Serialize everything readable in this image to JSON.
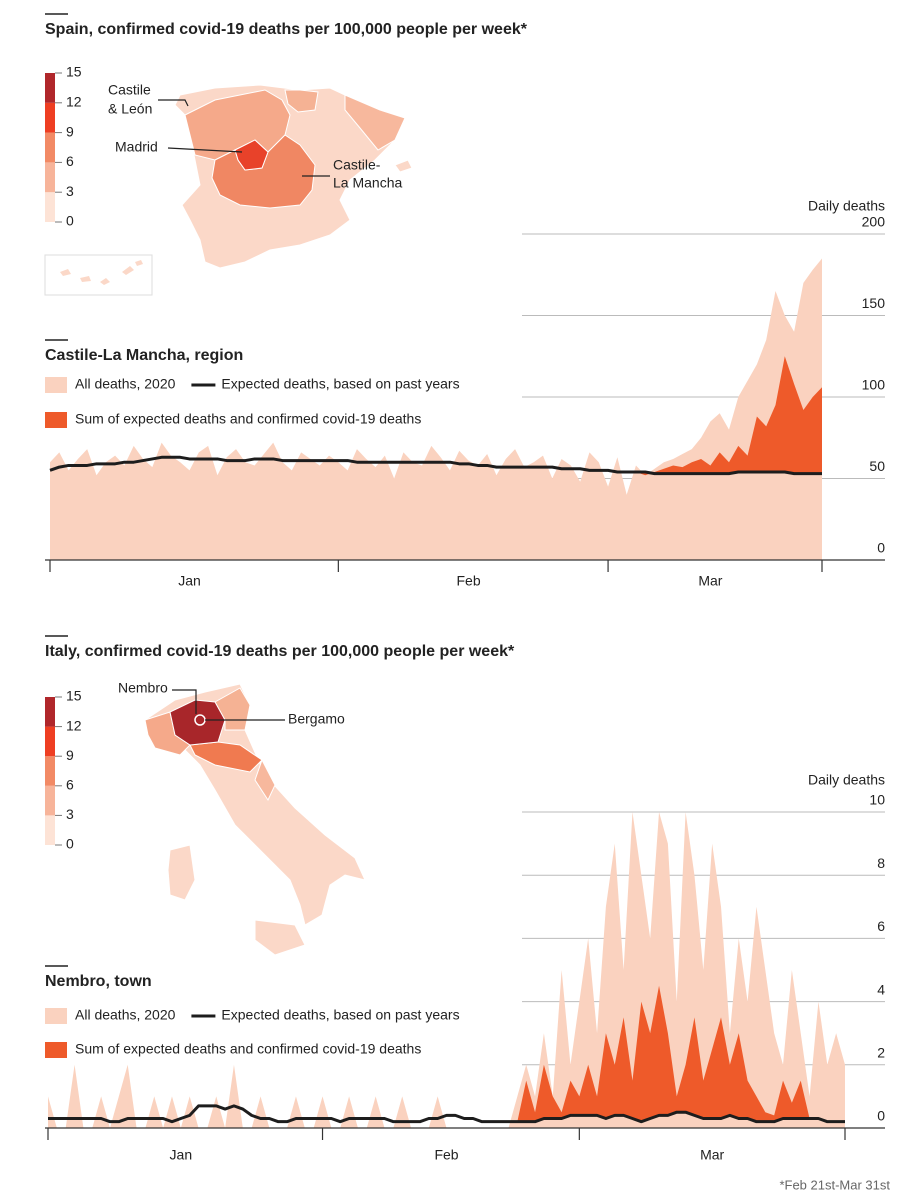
{
  "chart_data": [
    {
      "type": "area",
      "map_title": "Spain, confirmed covid-19 deaths per 100,000 people per week*",
      "map_scale": {
        "ticks": [
          0,
          3,
          6,
          9,
          12,
          15
        ],
        "colors": [
          "#fde3d6",
          "#f7b49a",
          "#f28a65",
          "#ee3e22",
          "#b0272b"
        ]
      },
      "map_labels": [
        [
          "Castile",
          "& León"
        ],
        [
          "Madrid"
        ],
        [
          "Castile-",
          "La Mancha"
        ]
      ],
      "title": "Castile-La Mancha, region",
      "y_label": "Daily deaths",
      "ylim": [
        0,
        200
      ],
      "yticks": [
        0,
        50,
        100,
        150,
        200
      ],
      "categories": [
        null,
        null,
        null,
        null,
        null,
        null,
        null,
        null,
        null,
        null,
        null,
        null,
        null,
        null,
        null,
        "Jan",
        null,
        null,
        null,
        null,
        null,
        null,
        null,
        null,
        null,
        null,
        null,
        null,
        null,
        null,
        null,
        null,
        null,
        null,
        null,
        null,
        null,
        null,
        null,
        null,
        null,
        null,
        null,
        null,
        null,
        "Feb",
        null,
        null,
        null,
        null,
        null,
        null,
        null,
        null,
        null,
        null,
        null,
        null,
        null,
        null,
        null,
        null,
        null,
        null,
        null,
        null,
        null,
        null,
        null,
        null,
        null,
        "Mar",
        null,
        null,
        null,
        null,
        null,
        null,
        null,
        null,
        null,
        null,
        null,
        null
      ],
      "series": [
        {
          "name": "All deaths, 2020",
          "color": "#fad2bf",
          "style": "area",
          "values": [
            60,
            66,
            55,
            62,
            68,
            52,
            60,
            64,
            58,
            70,
            62,
            57,
            72,
            64,
            60,
            55,
            66,
            70,
            52,
            63,
            68,
            60,
            58,
            65,
            72,
            60,
            55,
            66,
            62,
            58,
            64,
            60,
            55,
            68,
            62,
            57,
            64,
            50,
            66,
            60,
            58,
            70,
            63,
            55,
            67,
            61,
            58,
            65,
            52,
            62,
            68,
            57,
            60,
            64,
            50,
            62,
            58,
            48,
            66,
            60,
            45,
            63,
            40,
            58,
            52,
            56,
            60,
            62,
            65,
            68,
            75,
            85,
            90,
            80,
            100,
            110,
            120,
            135,
            165,
            150,
            140,
            170,
            178,
            185
          ]
        },
        {
          "name": "Expected deaths, based on past years",
          "color": "#1d1d1d",
          "style": "line",
          "values": [
            55,
            57,
            58,
            58,
            58,
            59,
            59,
            59,
            60,
            60,
            61,
            62,
            63,
            63,
            63,
            62,
            62,
            62,
            62,
            61,
            61,
            61,
            62,
            62,
            62,
            61,
            61,
            61,
            61,
            61,
            61,
            61,
            61,
            60,
            60,
            60,
            60,
            60,
            60,
            60,
            60,
            60,
            60,
            60,
            59,
            59,
            58,
            58,
            57,
            57,
            57,
            57,
            57,
            57,
            57,
            56,
            56,
            56,
            55,
            55,
            55,
            54,
            54,
            54,
            54,
            53,
            53,
            53,
            53,
            53,
            53,
            53,
            53,
            53,
            54,
            54,
            54,
            54,
            54,
            54,
            53,
            53,
            53,
            53
          ]
        },
        {
          "name": "Sum of expected deaths and confirmed covid-19 deaths",
          "color": "#ee5a2a",
          "style": "band",
          "values": [
            55,
            57,
            58,
            58,
            58,
            59,
            59,
            59,
            60,
            60,
            61,
            62,
            63,
            63,
            63,
            62,
            62,
            62,
            62,
            61,
            61,
            61,
            62,
            62,
            62,
            61,
            61,
            61,
            61,
            61,
            61,
            61,
            61,
            60,
            60,
            60,
            60,
            60,
            60,
            60,
            60,
            60,
            60,
            60,
            59,
            59,
            58,
            58,
            57,
            57,
            57,
            57,
            57,
            57,
            57,
            56,
            56,
            56,
            55,
            55,
            55,
            54,
            54,
            54,
            52,
            54,
            56,
            58,
            57,
            60,
            62,
            58,
            66,
            60,
            70,
            64,
            88,
            82,
            95,
            125,
            108,
            92,
            100,
            106
          ]
        }
      ]
    },
    {
      "type": "area",
      "map_title": "Italy, confirmed covid-19 deaths per 100,000 people per week*",
      "map_scale": {
        "ticks": [
          0,
          3,
          6,
          9,
          12,
          15
        ],
        "colors": [
          "#fde3d6",
          "#f7b49a",
          "#f28a65",
          "#ee3e22",
          "#b0272b"
        ]
      },
      "map_labels": [
        [
          "Nembro"
        ],
        [
          "Bergamo"
        ]
      ],
      "title": "Nembro, town",
      "y_label": "Daily deaths",
      "ylim": [
        0,
        10
      ],
      "yticks": [
        0,
        2,
        4,
        6,
        8,
        10
      ],
      "categories": [
        null,
        null,
        null,
        null,
        null,
        null,
        null,
        null,
        null,
        null,
        null,
        null,
        null,
        null,
        null,
        "Jan",
        null,
        null,
        null,
        null,
        null,
        null,
        null,
        null,
        null,
        null,
        null,
        null,
        null,
        null,
        null,
        null,
        null,
        null,
        null,
        null,
        null,
        null,
        null,
        null,
        null,
        null,
        null,
        null,
        null,
        "Feb",
        null,
        null,
        null,
        null,
        null,
        null,
        null,
        null,
        null,
        null,
        null,
        null,
        null,
        null,
        null,
        null,
        null,
        null,
        null,
        null,
        null,
        null,
        null,
        null,
        null,
        null,
        null,
        null,
        null,
        "Mar",
        null,
        null,
        null,
        null,
        null,
        null,
        null,
        null,
        null,
        null,
        null,
        null,
        null,
        null,
        null
      ],
      "series": [
        {
          "name": "All deaths, 2020",
          "color": "#fad2bf",
          "style": "area",
          "values": [
            1,
            0,
            0,
            2,
            0,
            0,
            1,
            0,
            1,
            2,
            0,
            0,
            1,
            0,
            1,
            0,
            1,
            0,
            0,
            1,
            0,
            2,
            0,
            0,
            1,
            0,
            0,
            0,
            1,
            0,
            0,
            1,
            0,
            0,
            1,
            0,
            0,
            1,
            0,
            0,
            1,
            0,
            0,
            0,
            1,
            0,
            0,
            0,
            0,
            0,
            0,
            0,
            0,
            1,
            2,
            1,
            3,
            1,
            5,
            2,
            4,
            6,
            3,
            7,
            9,
            5,
            10,
            8,
            6,
            10,
            9,
            4,
            10,
            8,
            5,
            9,
            7,
            3,
            6,
            4,
            7,
            5,
            3,
            2,
            5,
            3,
            1,
            4,
            2,
            3,
            2
          ]
        },
        {
          "name": "Expected deaths, based on past years",
          "color": "#1d1d1d",
          "style": "line",
          "values": [
            0.3,
            0.3,
            0.3,
            0.3,
            0.3,
            0.3,
            0.3,
            0.2,
            0.2,
            0.3,
            0.3,
            0.3,
            0.3,
            0.3,
            0.2,
            0.3,
            0.4,
            0.7,
            0.7,
            0.7,
            0.6,
            0.7,
            0.6,
            0.4,
            0.3,
            0.3,
            0.2,
            0.2,
            0.3,
            0.3,
            0.3,
            0.3,
            0.3,
            0.2,
            0.3,
            0.3,
            0.3,
            0.3,
            0.3,
            0.2,
            0.2,
            0.2,
            0.2,
            0.3,
            0.3,
            0.4,
            0.4,
            0.3,
            0.3,
            0.2,
            0.2,
            0.2,
            0.2,
            0.2,
            0.2,
            0.2,
            0.3,
            0.3,
            0.3,
            0.4,
            0.4,
            0.4,
            0.4,
            0.3,
            0.4,
            0.4,
            0.3,
            0.2,
            0.3,
            0.4,
            0.4,
            0.5,
            0.5,
            0.4,
            0.3,
            0.3,
            0.3,
            0.4,
            0.3,
            0.3,
            0.2,
            0.2,
            0.2,
            0.3,
            0.3,
            0.3,
            0.3,
            0.3,
            0.2,
            0.2,
            0.2
          ]
        },
        {
          "name": "Sum of expected deaths and confirmed covid-19 deaths",
          "color": "#ee5a2a",
          "style": "band",
          "values": [
            0.3,
            0.3,
            0.3,
            0.3,
            0.3,
            0.3,
            0.3,
            0.2,
            0.2,
            0.3,
            0.3,
            0.3,
            0.3,
            0.3,
            0.2,
            0.3,
            0.4,
            0.7,
            0.7,
            0.7,
            0.6,
            0.7,
            0.6,
            0.4,
            0.3,
            0.3,
            0.2,
            0.2,
            0.3,
            0.3,
            0.3,
            0.3,
            0.3,
            0.2,
            0.3,
            0.3,
            0.3,
            0.3,
            0.3,
            0.2,
            0.2,
            0.2,
            0.2,
            0.3,
            0.3,
            0.4,
            0.4,
            0.3,
            0.3,
            0.2,
            0.2,
            0.2,
            0.2,
            0.2,
            1.5,
            0.5,
            2,
            1,
            0.5,
            1.5,
            1,
            2,
            1,
            3,
            2,
            3.5,
            1.5,
            4,
            3,
            4.5,
            3,
            1,
            2,
            3.5,
            1.5,
            2.5,
            3.5,
            2,
            3,
            1.5,
            1,
            0.5,
            0.4,
            1.5,
            0.8,
            1.5,
            0.3,
            0.3,
            0.2,
            0.2,
            0.2
          ]
        }
      ]
    }
  ],
  "footnote": "*Feb 21st-Mar 31st"
}
